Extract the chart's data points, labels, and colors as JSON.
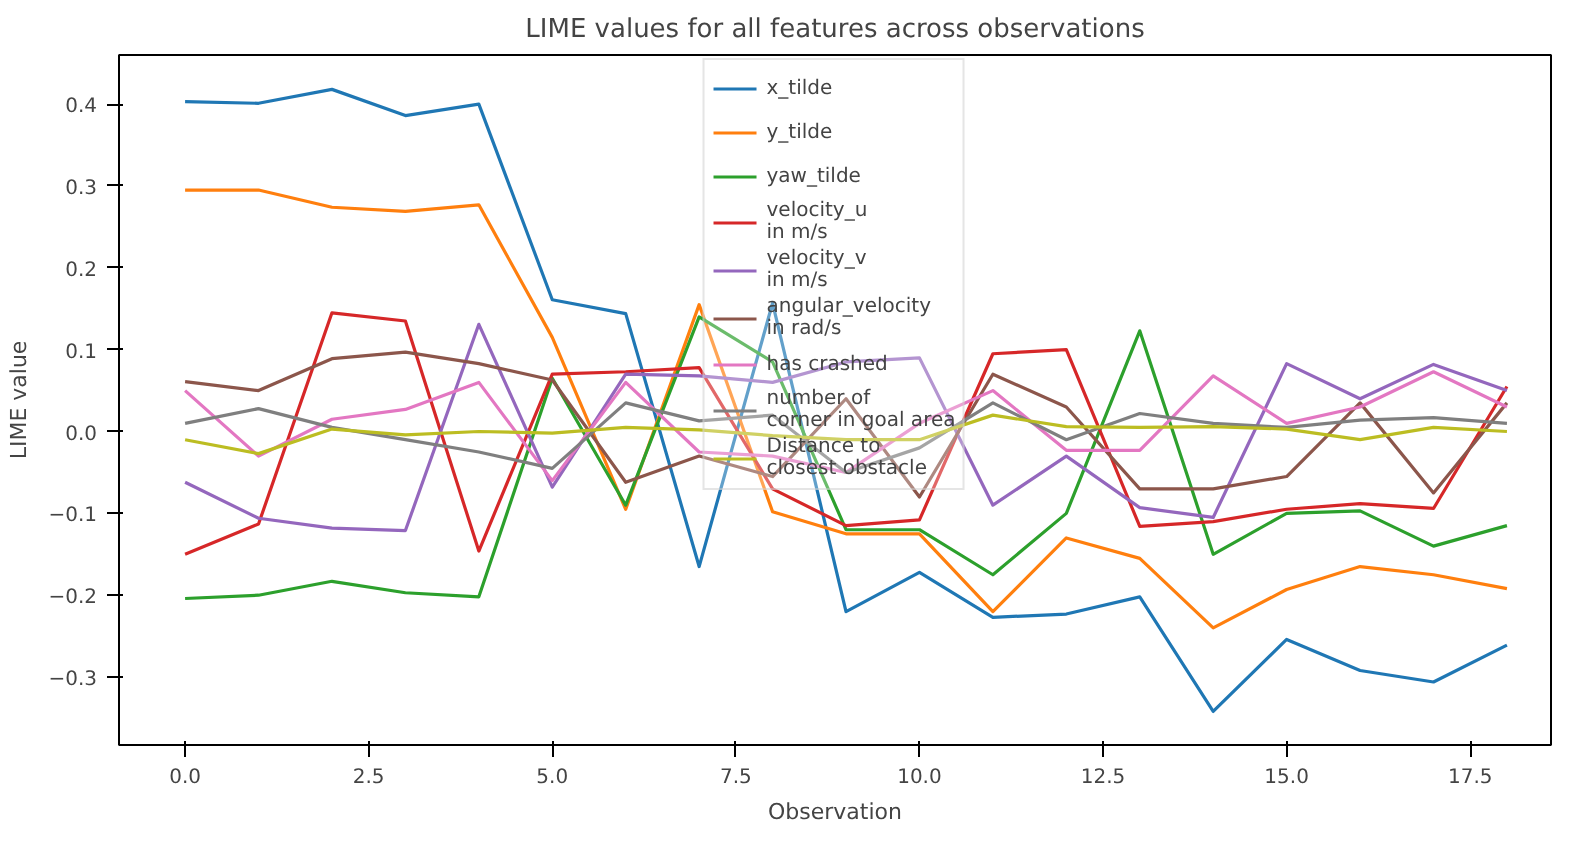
{
  "chart_data": {
    "type": "line",
    "title": "LIME values for all features across observations",
    "xlabel": "Observation",
    "ylabel": "LIME value",
    "x": [
      0,
      1,
      2,
      3,
      4,
      5,
      6,
      7,
      8,
      9,
      10,
      11,
      12,
      13,
      14,
      15,
      16,
      17,
      18
    ],
    "xlim": [
      -0.9,
      18.6
    ],
    "ylim": [
      -0.383,
      0.46
    ],
    "xticks": [
      {
        "value": 0,
        "label": "0.0"
      },
      {
        "value": 2.5,
        "label": "2.5"
      },
      {
        "value": 5,
        "label": "5.0"
      },
      {
        "value": 7.5,
        "label": "7.5"
      },
      {
        "value": 10,
        "label": "10.0"
      },
      {
        "value": 12.5,
        "label": "12.5"
      },
      {
        "value": 15,
        "label": "15.0"
      },
      {
        "value": 17.5,
        "label": "17.5"
      }
    ],
    "yticks": [
      {
        "value": -0.3,
        "label": "−0.3"
      },
      {
        "value": -0.2,
        "label": "−0.2"
      },
      {
        "value": -0.1,
        "label": "−0.1"
      },
      {
        "value": 0,
        "label": "0.0"
      },
      {
        "value": 0.1,
        "label": "0.1"
      },
      {
        "value": 0.2,
        "label": "0.2"
      },
      {
        "value": 0.3,
        "label": "0.3"
      },
      {
        "value": 0.4,
        "label": "0.4"
      }
    ],
    "grid": false,
    "legend": "top",
    "line_style": "solid",
    "series": [
      {
        "name": "x_tilde",
        "color": "#1f77b4",
        "values": [
          0.403,
          0.401,
          0.418,
          0.386,
          0.4,
          0.161,
          0.144,
          -0.165,
          0.157,
          -0.22,
          -0.172,
          -0.227,
          -0.223,
          -0.202,
          -0.342,
          -0.254,
          -0.292,
          -0.306,
          -0.261
        ]
      },
      {
        "name": "y_tilde",
        "color": "#ff7f0e",
        "values": [
          0.295,
          0.295,
          0.274,
          0.269,
          0.277,
          0.115,
          -0.095,
          0.155,
          -0.098,
          -0.125,
          -0.125,
          -0.22,
          -0.13,
          -0.155,
          -0.24,
          -0.193,
          -0.165,
          -0.175,
          -0.192
        ]
      },
      {
        "name": "yaw_tilde",
        "color": "#2ca02c",
        "values": [
          -0.204,
          -0.2,
          -0.183,
          -0.197,
          -0.202,
          0.065,
          -0.09,
          0.14,
          0.085,
          -0.12,
          -0.12,
          -0.175,
          -0.1,
          0.123,
          -0.15,
          -0.1,
          -0.097,
          -0.14,
          -0.115
        ]
      },
      {
        "name": "velocity_u\nin m/s",
        "color": "#d62728",
        "values": [
          -0.15,
          -0.113,
          0.145,
          0.135,
          -0.146,
          0.07,
          0.073,
          0.078,
          -0.07,
          -0.115,
          -0.108,
          0.095,
          0.1,
          -0.116,
          -0.11,
          -0.095,
          -0.088,
          -0.094,
          0.055
        ]
      },
      {
        "name": "velocity_v\nin m/s",
        "color": "#9467bd",
        "values": [
          -0.062,
          -0.106,
          -0.118,
          -0.121,
          0.131,
          -0.068,
          0.07,
          0.068,
          0.06,
          0.085,
          0.09,
          -0.09,
          -0.03,
          -0.093,
          -0.105,
          0.083,
          0.04,
          0.082,
          0.05
        ]
      },
      {
        "name": "angular_velocity\nin rad/s",
        "color": "#8c564b",
        "values": [
          0.061,
          0.05,
          0.089,
          0.097,
          0.083,
          0.063,
          -0.062,
          -0.03,
          -0.055,
          0.04,
          -0.08,
          0.07,
          0.03,
          -0.07,
          -0.07,
          -0.055,
          0.035,
          -0.075,
          0.035
        ]
      },
      {
        "name": "has crashed",
        "color": "#e377c2",
        "values": [
          0.05,
          -0.03,
          0.015,
          0.027,
          0.06,
          -0.06,
          0.06,
          -0.025,
          -0.03,
          -0.05,
          0.01,
          0.05,
          -0.023,
          -0.023,
          0.068,
          0.01,
          0.03,
          0.073,
          0.03
        ]
      },
      {
        "name": "number of\ncorner in goal area",
        "color": "#7f7f7f",
        "values": [
          0.01,
          0.028,
          0.005,
          -0.01,
          -0.025,
          -0.045,
          0.035,
          0.013,
          0.02,
          -0.05,
          -0.02,
          0.035,
          -0.01,
          0.022,
          0.01,
          0.005,
          0.014,
          0.017,
          0.01
        ]
      },
      {
        "name": "Distance to\nclosest obstacle",
        "color": "#bcbd22",
        "values": [
          -0.01,
          -0.027,
          0.003,
          -0.004,
          0.0,
          -0.002,
          0.005,
          0.002,
          -0.005,
          -0.01,
          -0.01,
          0.02,
          0.006,
          0.005,
          0.006,
          0.003,
          -0.01,
          0.005,
          0.0
        ]
      }
    ]
  }
}
